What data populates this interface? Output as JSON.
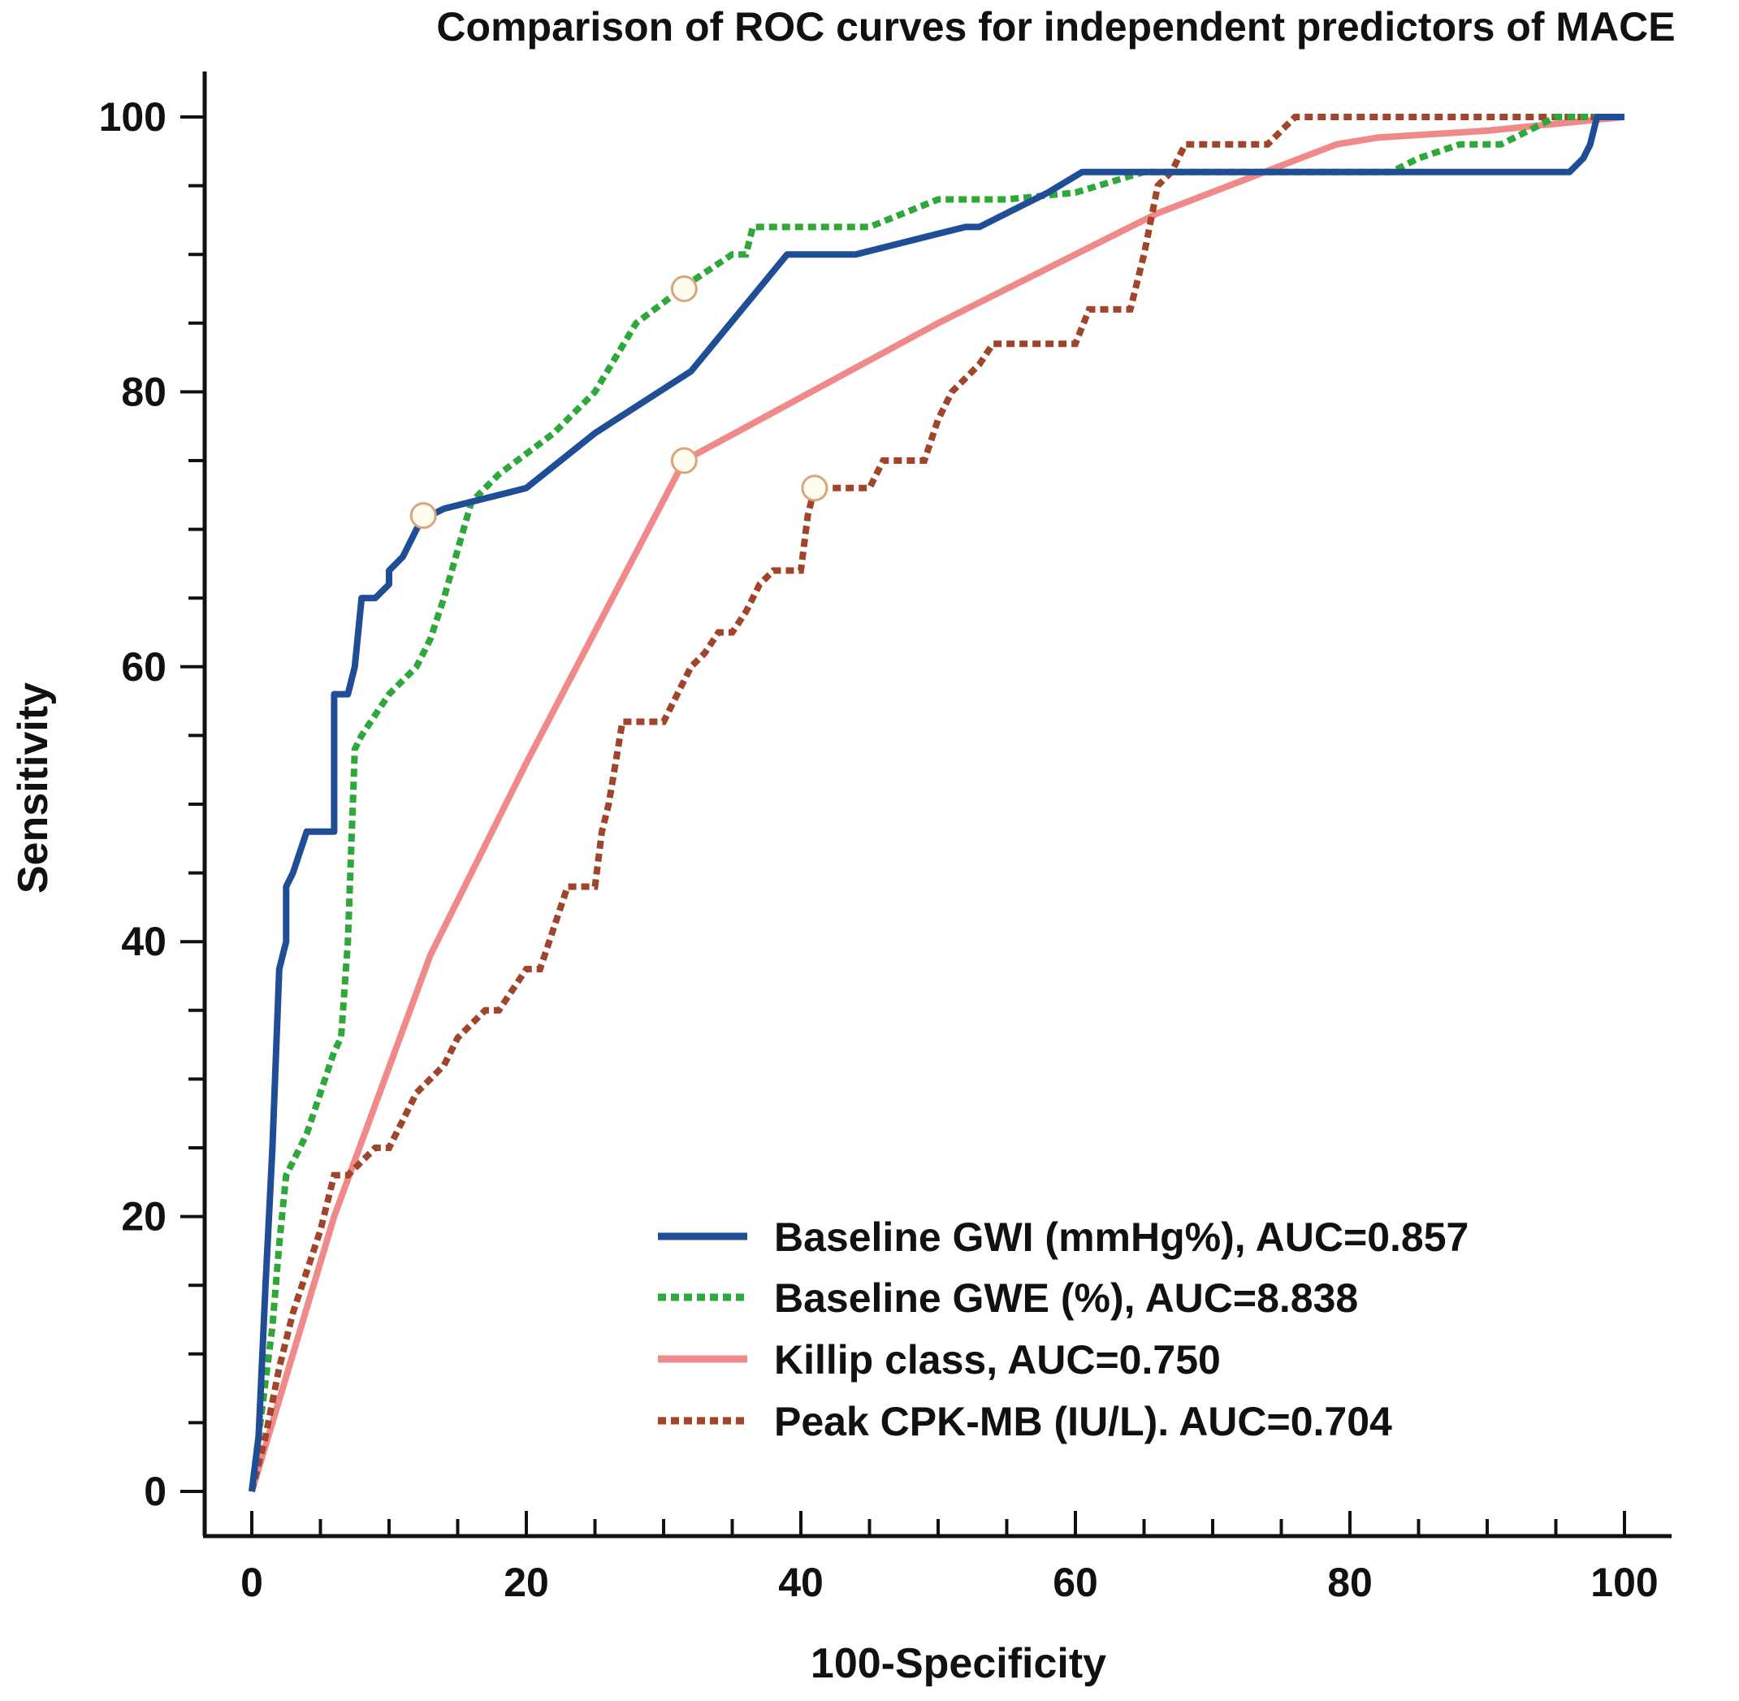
{
  "chart_data": {
    "type": "line",
    "title": "Comparison of ROC curves for independent predictors of MACE",
    "xlabel": "100-Specificity",
    "ylabel": "Sensitivity",
    "xlim": [
      0,
      100
    ],
    "ylim": [
      0,
      100
    ],
    "xticks": [
      "0",
      "20",
      "40",
      "60",
      "80",
      "100"
    ],
    "yticks": [
      "0",
      "20",
      "40",
      "60",
      "80",
      "100"
    ],
    "legend_position": "bottom-right",
    "series": [
      {
        "name": "Baseline GWI (mmHg%), AUC=0.857",
        "color": "#1f4e96",
        "dash": "solid",
        "x": [
          0,
          0.5,
          1,
          1.5,
          2,
          2.5,
          2.5,
          3,
          3.5,
          4,
          5,
          5.5,
          6,
          6,
          7,
          7.5,
          8,
          8,
          9,
          10,
          10,
          11,
          12,
          12.5,
          13,
          14,
          16,
          20,
          25,
          32,
          39,
          44,
          50,
          52,
          53,
          55,
          58,
          60.5,
          65,
          70,
          80,
          90,
          96,
          97,
          97.5,
          98,
          100
        ],
        "y": [
          0,
          4,
          15,
          25,
          38,
          40,
          44,
          45,
          46.5,
          48,
          48,
          48,
          48,
          58,
          58,
          60,
          65,
          65,
          65,
          66,
          67,
          68,
          70,
          71,
          71,
          71.5,
          72,
          73,
          77,
          81.5,
          90,
          90,
          91.5,
          92,
          92,
          93,
          94.5,
          96,
          96,
          96,
          96,
          96,
          96,
          97,
          98,
          100,
          100
        ],
        "cutoff": [
          12.5,
          71
        ]
      },
      {
        "name": "Baseline GWE (%), AUC=8.838",
        "color": "#2ea83a",
        "dash": "dotted",
        "x": [
          0,
          0.5,
          1,
          1.5,
          2,
          2.5,
          3,
          4,
          5,
          6,
          6.5,
          7,
          7.5,
          8,
          10,
          12,
          13,
          14,
          16,
          18,
          22,
          25,
          28,
          32,
          35,
          36,
          36.5,
          40,
          45,
          50,
          55,
          60,
          65,
          70,
          75,
          80,
          83,
          85,
          88,
          91,
          93,
          95,
          100
        ],
        "y": [
          0,
          4,
          8,
          12,
          18,
          23,
          24,
          26,
          29,
          32,
          33,
          40,
          54,
          55,
          58,
          60,
          62,
          65,
          72,
          74,
          77,
          80,
          85,
          88,
          90,
          90,
          92,
          92,
          92,
          94,
          94,
          94.5,
          96,
          96,
          96,
          96,
          96,
          97,
          98,
          98,
          99,
          100,
          100
        ],
        "cutoff": [
          31.5,
          87.5
        ]
      },
      {
        "name": "Killip class, AUC=0.750",
        "color": "#f08a8a",
        "dash": "solid",
        "x": [
          0,
          6,
          13,
          20,
          31.5,
          50,
          66,
          79,
          82,
          90,
          100
        ],
        "y": [
          0,
          20,
          39,
          53,
          75,
          85,
          93,
          98,
          98.5,
          99,
          100
        ],
        "cutoff": [
          31.5,
          75
        ]
      },
      {
        "name": "Peak CPK-MB (IU/L). AUC=0.704",
        "color": "#a0452a",
        "dash": "dotted",
        "x": [
          0,
          1,
          2,
          3,
          4,
          5,
          5.5,
          6,
          7,
          8,
          9,
          10,
          11,
          12,
          13,
          14,
          15,
          16,
          17,
          18,
          20,
          21,
          22,
          23,
          25,
          25.5,
          26,
          26.5,
          27,
          30,
          31,
          32,
          33,
          34,
          35,
          36,
          37,
          38,
          40,
          40.5,
          41,
          42,
          45,
          46,
          49,
          50,
          51,
          52,
          53,
          54,
          60,
          61,
          62,
          64,
          65,
          66,
          67,
          68,
          69,
          74,
          75,
          76,
          80,
          90,
          100
        ],
        "y": [
          0,
          4,
          9,
          13,
          16,
          19,
          21,
          23,
          23,
          24,
          25,
          25,
          27,
          29,
          30,
          31,
          33,
          34,
          35,
          35,
          38,
          38,
          41,
          44,
          44,
          48,
          50,
          53,
          56,
          56,
          58,
          60,
          61,
          62.5,
          62.5,
          64,
          66,
          67,
          67,
          71,
          73,
          73,
          73,
          75,
          75,
          78,
          80,
          81,
          82,
          83.5,
          83.5,
          86,
          86,
          86,
          90,
          95,
          96,
          98,
          98,
          98,
          99,
          100,
          100,
          100,
          100
        ],
        "cutoff": [
          41,
          73
        ]
      }
    ]
  }
}
